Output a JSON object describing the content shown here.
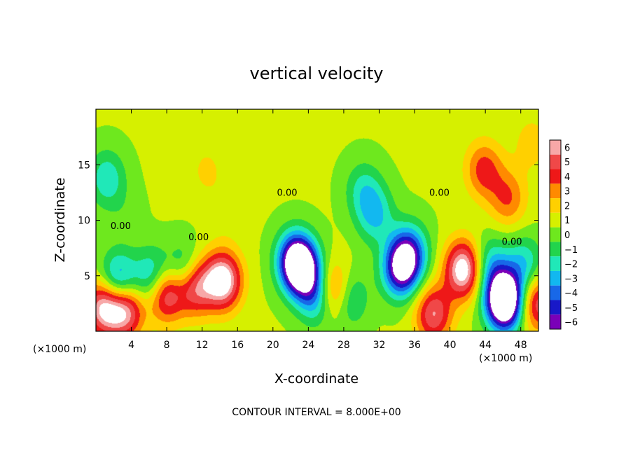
{
  "chart_data": {
    "type": "heatmap",
    "title": "vertical velocity",
    "xlabel": "X-coordinate",
    "ylabel": "Z-coordinate",
    "x_unit_left": "(×1000 m)",
    "x_unit_right": "(×1000 m)",
    "footer": "CONTOUR INTERVAL = 8.000E+00",
    "xlim": [
      0,
      50
    ],
    "ylim": [
      0,
      20
    ],
    "x_ticks": [
      4,
      8,
      12,
      16,
      20,
      24,
      28,
      32,
      36,
      40,
      44,
      48
    ],
    "y_ticks": [
      5,
      10,
      15
    ],
    "colorbar": {
      "levels": [
        -6,
        -5,
        -4,
        -3,
        -2,
        -1,
        0,
        1,
        2,
        3,
        4,
        5,
        6
      ],
      "labels": [
        "6",
        "5",
        "4",
        "3",
        "2",
        "1",
        "0",
        "−1",
        "−2",
        "−3",
        "−4",
        "−5",
        "−6"
      ],
      "colors": [
        "#f7a8a8",
        "#f04848",
        "#ee1818",
        "#ff8a00",
        "#ffd000",
        "#d6f000",
        "#6ee81e",
        "#22d44c",
        "#20e8b8",
        "#12b8f0",
        "#1868e8",
        "#1818c8",
        "#7a00b8"
      ]
    },
    "background_value": 0.6,
    "contour_label": "0.00",
    "contour_label_positions": [
      {
        "x": 2.8,
        "y": 9.2
      },
      {
        "x": 11.6,
        "y": 8.2
      },
      {
        "x": 21.6,
        "y": 12.2
      },
      {
        "x": 38.8,
        "y": 12.2
      },
      {
        "x": 47.0,
        "y": 7.8
      }
    ],
    "features": [
      {
        "x": 1.2,
        "y": 13.8,
        "value": -2.8
      },
      {
        "x": 3.2,
        "y": 10.6,
        "value": -0.5
      },
      {
        "x": 0.8,
        "y": 2.2,
        "value": 6.0
      },
      {
        "x": 3.3,
        "y": 2.0,
        "value": 6.0
      },
      {
        "x": 2.5,
        "y": 4.5,
        "value": -5.0
      },
      {
        "x": 6.5,
        "y": 4.8,
        "value": -4.5
      },
      {
        "x": 7.8,
        "y": 3.6,
        "value": 6.5
      },
      {
        "x": 10.0,
        "y": 5.2,
        "value": -4.5
      },
      {
        "x": 11.0,
        "y": 4.2,
        "value": 6.5
      },
      {
        "x": 14.3,
        "y": 4.6,
        "value": 7.0
      },
      {
        "x": 12.5,
        "y": 14.5,
        "value": 1.2
      },
      {
        "x": 14.8,
        "y": 10.8,
        "value": 0.6
      },
      {
        "x": 22.5,
        "y": 6.5,
        "value": -6.5
      },
      {
        "x": 23.4,
        "y": 5.4,
        "value": -6.0
      },
      {
        "x": 26.6,
        "y": 3.6,
        "value": 6.0
      },
      {
        "x": 25.2,
        "y": 3.2,
        "value": -5.0
      },
      {
        "x": 28.5,
        "y": 3.0,
        "value": -3.0
      },
      {
        "x": 31.5,
        "y": 10.5,
        "value": -3.0
      },
      {
        "x": 30.2,
        "y": 12.8,
        "value": -2.2
      },
      {
        "x": 34.4,
        "y": 5.6,
        "value": -6.5
      },
      {
        "x": 35.4,
        "y": 7.2,
        "value": -4.5
      },
      {
        "x": 38.1,
        "y": 1.6,
        "value": 5.0
      },
      {
        "x": 41.5,
        "y": 5.6,
        "value": 7.0
      },
      {
        "x": 43.8,
        "y": 14.6,
        "value": 3.5
      },
      {
        "x": 46.5,
        "y": 12.0,
        "value": 3.0
      },
      {
        "x": 44.5,
        "y": 6.0,
        "value": -3.0
      },
      {
        "x": 46.0,
        "y": 3.0,
        "value": -5.0
      },
      {
        "x": 46.2,
        "y": 2.6,
        "value": -6.5
      },
      {
        "x": 48.4,
        "y": 6.0,
        "value": -3.0
      },
      {
        "x": 49.8,
        "y": 2.6,
        "value": 5.0
      },
      {
        "x": 49.2,
        "y": 17.0,
        "value": 1.5
      }
    ]
  }
}
